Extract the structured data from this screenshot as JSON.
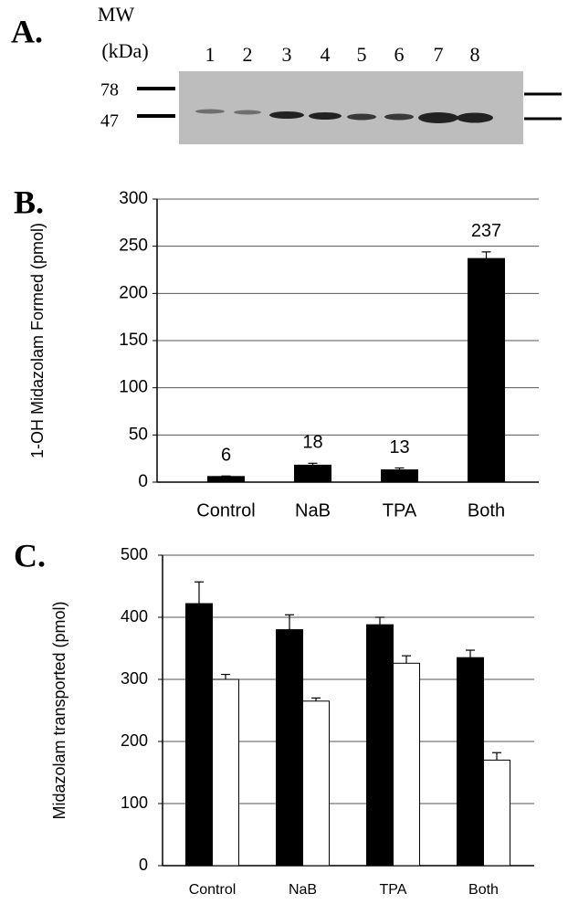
{
  "panel_a": {
    "label": "A.",
    "mw_title": "MW",
    "mw_unit": "(kDa)",
    "lanes": [
      "1",
      "2",
      "3",
      "4",
      "5",
      "6",
      "7",
      "8"
    ],
    "markers": [
      "78",
      "47"
    ]
  },
  "chart_data": [
    {
      "type": "bar",
      "panel_label": "B.",
      "ylabel": "1-OH Midazolam Formed (pmol)",
      "categories": [
        "Control",
        "NaB",
        "TPA",
        "Both"
      ],
      "series": [
        {
          "color": "#000000",
          "values": [
            6,
            18,
            13,
            237
          ],
          "errors": [
            0.5,
            2,
            2,
            7
          ]
        }
      ],
      "show_value_labels": true,
      "ylim": [
        0,
        300
      ],
      "yticks": [
        0,
        50,
        100,
        150,
        200,
        250,
        300
      ],
      "grid": true
    },
    {
      "type": "bar",
      "panel_label": "C.",
      "ylabel": "Midazolam transported (pmol)",
      "categories": [
        "Control",
        "NaB",
        "TPA",
        "Both"
      ],
      "series": [
        {
          "color": "#000000",
          "values": [
            422,
            380,
            388,
            335
          ],
          "errors": [
            35,
            24,
            12,
            12
          ]
        },
        {
          "color": "#ffffff",
          "values": [
            300,
            265,
            326,
            170
          ],
          "errors": [
            8,
            5,
            12,
            12
          ]
        }
      ],
      "show_value_labels": false,
      "ylim": [
        0,
        500
      ],
      "yticks": [
        0,
        100,
        200,
        300,
        400,
        500
      ],
      "grid": true
    }
  ]
}
